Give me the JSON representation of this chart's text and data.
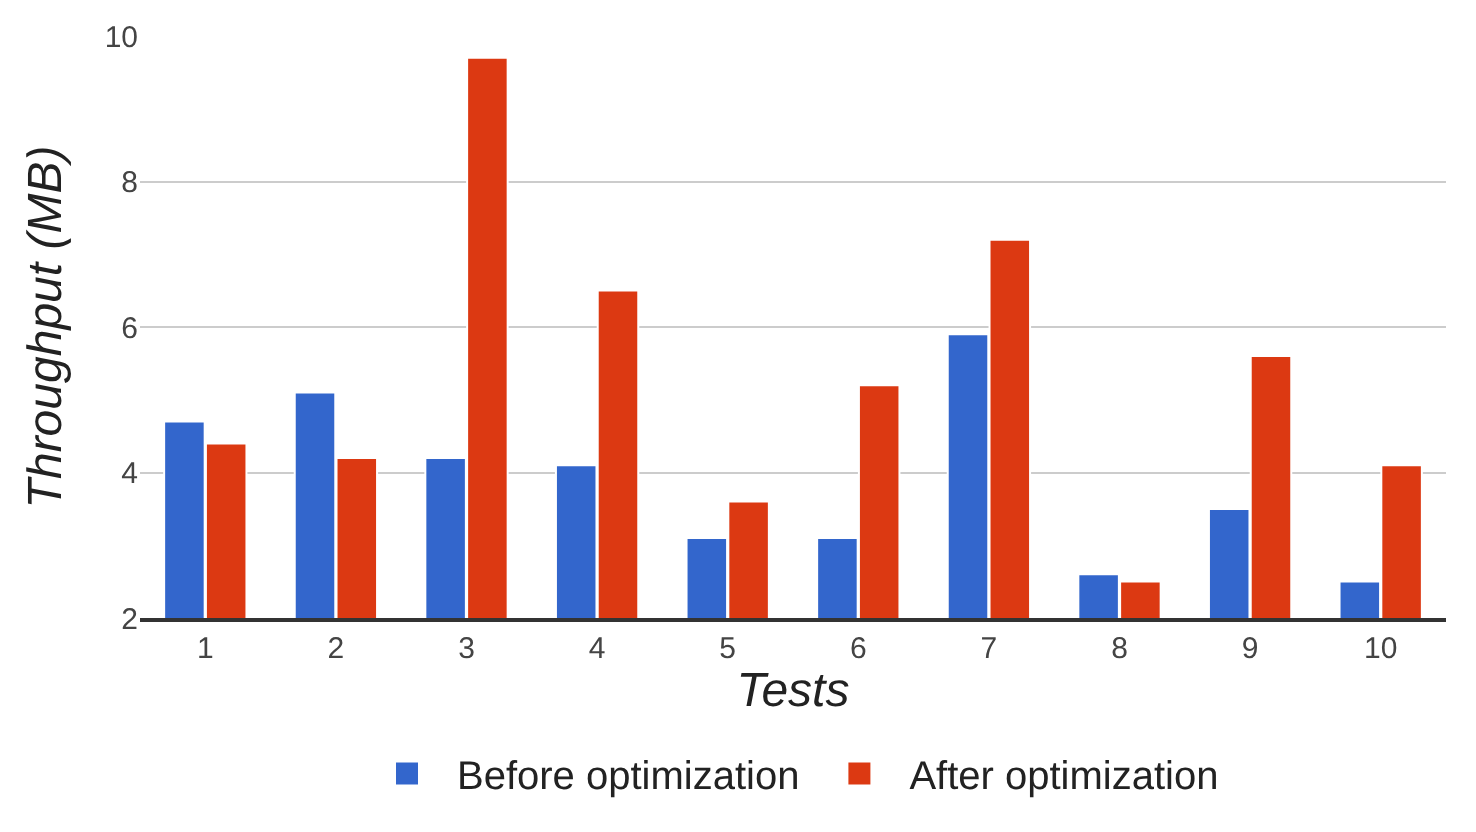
{
  "chart_data": {
    "type": "bar",
    "xlabel": "Tests",
    "ylabel": "Throughput (MB)",
    "categories": [
      "1",
      "2",
      "3",
      "4",
      "5",
      "6",
      "7",
      "8",
      "9",
      "10"
    ],
    "series": [
      {
        "name": "Before optimization",
        "color": "#3366cc",
        "values": [
          4.7,
          5.1,
          4.2,
          4.1,
          3.1,
          3.1,
          5.9,
          2.6,
          3.5,
          2.5
        ]
      },
      {
        "name": "After optimization",
        "color": "#dc3912",
        "values": [
          4.4,
          4.2,
          9.7,
          6.5,
          3.6,
          5.2,
          7.2,
          2.5,
          5.6,
          4.1
        ]
      }
    ],
    "ylim": [
      2,
      10
    ],
    "yticks": [
      2,
      4,
      6,
      8,
      10
    ],
    "grid": "y",
    "legend": "bottom"
  }
}
